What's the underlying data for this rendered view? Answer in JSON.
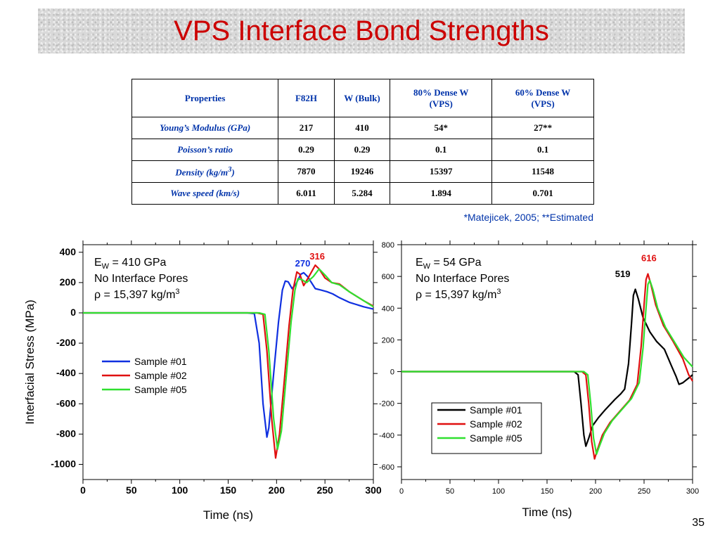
{
  "slide": {
    "title": "VPS Interface Bond Strengths",
    "page_number": "35"
  },
  "table": {
    "headers": [
      "Properties",
      "F82H",
      "W (Bulk)",
      [
        "80% Dense W",
        "(VPS)"
      ],
      [
        "60% Dense W",
        "(VPS)"
      ]
    ],
    "rows": [
      {
        "label": "Young’s Modulus (GPa)",
        "label_sup": "",
        "values": [
          "217",
          "410",
          "54*",
          "27**"
        ]
      },
      {
        "label": "Poisson’s ratio",
        "label_sup": "",
        "values": [
          "0.29",
          "0.29",
          "0.1",
          "0.1"
        ]
      },
      {
        "label": "Density (kg/m",
        "label_sup": "3",
        "label_end": ")",
        "values": [
          "7870",
          "19246",
          "15397",
          "11548"
        ]
      },
      {
        "label": "Wave speed (km/s)",
        "label_sup": "",
        "values": [
          "6.011",
          "5.284",
          "1.894",
          "0.701"
        ]
      }
    ],
    "footnote": "*Matejicek, 2005;  **Estimated"
  },
  "colors": {
    "title": "#cc0000",
    "table_header": "#0033aa",
    "blue": "#1030e0",
    "red": "#e01010",
    "green": "#30e030",
    "black": "#000000"
  },
  "chart_data": [
    {
      "type": "line",
      "ylabel": "Interfacial Stress (MPa)",
      "xlabel": "Time (ns)",
      "xlim": [
        0,
        300
      ],
      "ylim": [
        -1100,
        450
      ],
      "xticks": [
        "0",
        "50",
        "100",
        "150",
        "200",
        "250",
        "300"
      ],
      "yticks": [
        "400",
        "200",
        "0",
        "-200",
        "-400",
        "-600",
        "-800",
        "-1000"
      ],
      "annotation": {
        "ew_prefix": "E",
        "ew_sub": "W",
        "ew_text": " = 410 GPa",
        "line2": "No Interface Pores",
        "line3_pre": "ρ = 15,397 kg/m",
        "line3_sup": "3"
      },
      "peak_labels": [
        {
          "text": "270",
          "x": 227,
          "y": 268,
          "color": "#1030e0"
        },
        {
          "text": "316",
          "x": 242,
          "y": 316,
          "color": "#e01010"
        }
      ],
      "series": [
        {
          "name": "Sample #01",
          "color": "#1030e0",
          "points": [
            [
              0,
              0
            ],
            [
              170,
              0
            ],
            [
              177,
              -5
            ],
            [
              182,
              -200
            ],
            [
              186,
              -600
            ],
            [
              190,
              -820
            ],
            [
              192,
              -760
            ],
            [
              197,
              -400
            ],
            [
              202,
              -60
            ],
            [
              206,
              150
            ],
            [
              209,
              210
            ],
            [
              212,
              205
            ],
            [
              216,
              160
            ],
            [
              220,
              190
            ],
            [
              225,
              255
            ],
            [
              228,
              265
            ],
            [
              232,
              240
            ],
            [
              236,
              200
            ],
            [
              240,
              160
            ],
            [
              246,
              150
            ],
            [
              252,
              140
            ],
            [
              258,
              125
            ],
            [
              265,
              100
            ],
            [
              275,
              70
            ],
            [
              290,
              40
            ],
            [
              300,
              25
            ]
          ]
        },
        {
          "name": "Sample #02",
          "color": "#e01010",
          "points": [
            [
              0,
              0
            ],
            [
              180,
              0
            ],
            [
              186,
              -10
            ],
            [
              190,
              -250
            ],
            [
              195,
              -700
            ],
            [
              199,
              -958
            ],
            [
              203,
              -800
            ],
            [
              208,
              -450
            ],
            [
              213,
              -80
            ],
            [
              217,
              150
            ],
            [
              221,
              270
            ],
            [
              224,
              255
            ],
            [
              228,
              180
            ],
            [
              233,
              235
            ],
            [
              240,
              315
            ],
            [
              244,
              290
            ],
            [
              250,
              230
            ],
            [
              257,
              200
            ],
            [
              265,
              190
            ],
            [
              275,
              140
            ],
            [
              290,
              80
            ],
            [
              300,
              45
            ]
          ]
        },
        {
          "name": "Sample #05",
          "color": "#30e030",
          "points": [
            [
              0,
              0
            ],
            [
              182,
              0
            ],
            [
              188,
              -10
            ],
            [
              192,
              -250
            ],
            [
              197,
              -700
            ],
            [
              201,
              -900
            ],
            [
              205,
              -780
            ],
            [
              210,
              -420
            ],
            [
              215,
              -60
            ],
            [
              219,
              150
            ],
            [
              222,
              225
            ],
            [
              226,
              220
            ],
            [
              231,
              200
            ],
            [
              238,
              240
            ],
            [
              244,
              290
            ],
            [
              250,
              250
            ],
            [
              257,
              200
            ],
            [
              265,
              185
            ],
            [
              275,
              140
            ],
            [
              290,
              80
            ],
            [
              300,
              40
            ]
          ]
        }
      ],
      "legend": [
        "Sample #01",
        "Sample #02",
        "Sample #05"
      ],
      "legend_position": "middle-left"
    },
    {
      "type": "line",
      "xlabel": "Time (ns)",
      "xlim": [
        0,
        300
      ],
      "ylim": [
        -680,
        800
      ],
      "xticks": [
        "0",
        "50",
        "100",
        "150",
        "200",
        "250",
        "300"
      ],
      "yticks": [
        "800",
        "600",
        "400",
        "200",
        "0",
        "-200",
        "-400",
        "-600"
      ],
      "annotation": {
        "ew_prefix": "E",
        "ew_sub": "W",
        "ew_text": " = 54 GPa",
        "line2": "No Interface Pores",
        "line3_pre": "ρ = 15,397 kg/m",
        "line3_sup": "3"
      },
      "peak_labels": [
        {
          "text": "519",
          "x": 228,
          "y": 560,
          "color": "#000000"
        },
        {
          "text": "616",
          "x": 255,
          "y": 660,
          "color": "#e01010"
        }
      ],
      "series": [
        {
          "name": "Sample #01",
          "color": "#000000",
          "points": [
            [
              0,
              0
            ],
            [
              178,
              0
            ],
            [
              182,
              -20
            ],
            [
              185,
              -200
            ],
            [
              188,
              -400
            ],
            [
              190,
              -470
            ],
            [
              193,
              -420
            ],
            [
              197,
              -340
            ],
            [
              203,
              -290
            ],
            [
              210,
              -240
            ],
            [
              220,
              -175
            ],
            [
              226,
              -140
            ],
            [
              230,
              -110
            ],
            [
              234,
              50
            ],
            [
              237,
              300
            ],
            [
              239,
              480
            ],
            [
              241,
              519
            ],
            [
              244,
              460
            ],
            [
              249,
              340
            ],
            [
              256,
              250
            ],
            [
              263,
              190
            ],
            [
              271,
              140
            ],
            [
              278,
              40
            ],
            [
              283,
              -30
            ],
            [
              286,
              -80
            ],
            [
              290,
              -70
            ],
            [
              296,
              -40
            ],
            [
              300,
              -20
            ]
          ]
        },
        {
          "name": "Sample #02",
          "color": "#e01010",
          "points": [
            [
              0,
              0
            ],
            [
              186,
              0
            ],
            [
              190,
              -20
            ],
            [
              193,
              -200
            ],
            [
              196,
              -440
            ],
            [
              199,
              -550
            ],
            [
              202,
              -490
            ],
            [
              207,
              -400
            ],
            [
              215,
              -320
            ],
            [
              225,
              -250
            ],
            [
              235,
              -180
            ],
            [
              243,
              -80
            ],
            [
              247,
              160
            ],
            [
              250,
              420
            ],
            [
              252,
              580
            ],
            [
              254,
              616
            ],
            [
              257,
              550
            ],
            [
              262,
              420
            ],
            [
              270,
              290
            ],
            [
              280,
              190
            ],
            [
              290,
              80
            ],
            [
              296,
              -20
            ],
            [
              300,
              -60
            ]
          ]
        },
        {
          "name": "Sample #05",
          "color": "#30e030",
          "points": [
            [
              0,
              0
            ],
            [
              188,
              0
            ],
            [
              192,
              -20
            ],
            [
              195,
              -200
            ],
            [
              198,
              -420
            ],
            [
              201,
              -520
            ],
            [
              204,
              -470
            ],
            [
              209,
              -390
            ],
            [
              217,
              -310
            ],
            [
              227,
              -240
            ],
            [
              237,
              -170
            ],
            [
              245,
              -70
            ],
            [
              249,
              150
            ],
            [
              252,
              400
            ],
            [
              254,
              550
            ],
            [
              256,
              575
            ],
            [
              259,
              520
            ],
            [
              264,
              400
            ],
            [
              272,
              280
            ],
            [
              282,
              180
            ],
            [
              291,
              90
            ],
            [
              300,
              30
            ]
          ]
        }
      ],
      "legend": [
        "Sample #01",
        "Sample #02",
        "Sample #05"
      ],
      "legend_position": "bottom-right"
    }
  ]
}
